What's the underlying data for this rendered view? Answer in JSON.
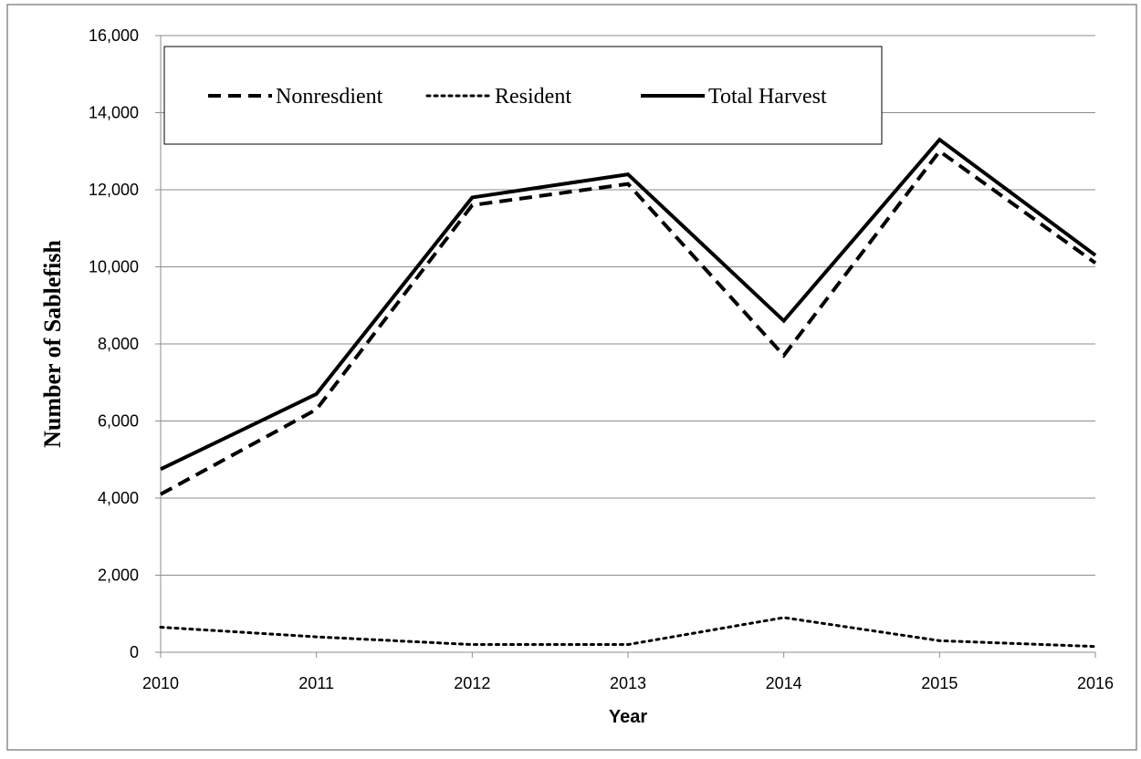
{
  "chart_data": {
    "type": "line",
    "title": "",
    "xlabel": "Year",
    "ylabel": "Number of Sablefish",
    "x": [
      "2010",
      "2011",
      "2012",
      "2013",
      "2014",
      "2015",
      "2016"
    ],
    "ylim": [
      0,
      16000
    ],
    "yticks": [
      0,
      2000,
      4000,
      6000,
      8000,
      10000,
      12000,
      14000,
      16000
    ],
    "ytick_labels": [
      "0",
      "2,000",
      "4,000",
      "6,000",
      "8,000",
      "10,000",
      "12,000",
      "14,000",
      "16,000"
    ],
    "grid": "horizontal",
    "legend_position": "top-left",
    "series": [
      {
        "name": "Nonresdient",
        "style": "dashed",
        "color": "#000000",
        "values": [
          4100,
          6300,
          11600,
          12150,
          7700,
          13000,
          10100
        ]
      },
      {
        "name": "Resident",
        "style": "dotted",
        "color": "#000000",
        "values": [
          650,
          400,
          200,
          200,
          900,
          300,
          150
        ]
      },
      {
        "name": "Total Harvest",
        "style": "solid",
        "color": "#000000",
        "values": [
          4750,
          6700,
          11800,
          12400,
          8600,
          13300,
          10300
        ]
      }
    ]
  }
}
